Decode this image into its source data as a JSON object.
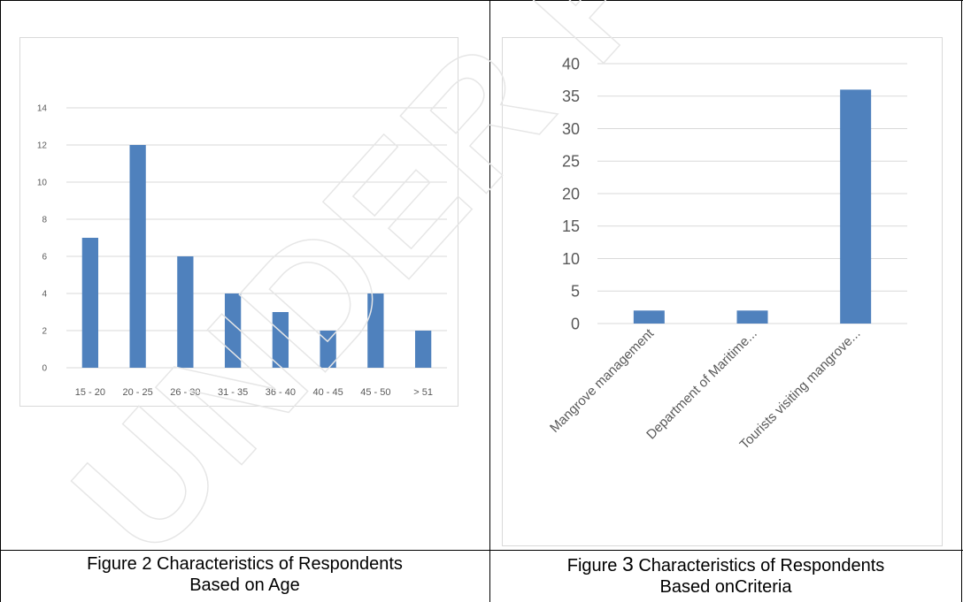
{
  "chart_data": [
    {
      "type": "bar",
      "title": "",
      "xlabel": "",
      "ylabel": "",
      "categories": [
        "15 - 20",
        "20 - 25",
        "26 - 30",
        "31 - 35",
        "36 - 40",
        "40 - 45",
        "45 - 50",
        "> 51"
      ],
      "values": [
        7,
        12,
        6,
        4,
        3,
        2,
        4,
        2
      ],
      "ylim": [
        0,
        14
      ],
      "yticks": [
        0,
        2,
        4,
        6,
        8,
        10,
        12,
        14
      ],
      "grid": true,
      "bar_color": "#4f81bd"
    },
    {
      "type": "bar",
      "title": "",
      "xlabel": "",
      "ylabel": "",
      "categories": [
        "Mangrove management",
        "Department of Maritime...",
        "Tourists visiting mangrove..."
      ],
      "values": [
        2,
        2,
        36
      ],
      "ylim": [
        0,
        40
      ],
      "yticks": [
        0,
        5,
        10,
        15,
        20,
        25,
        30,
        35,
        40
      ],
      "grid": true,
      "bar_color": "#4f81bd"
    }
  ],
  "captions": {
    "fig2_line1": "Figure 2 Characteristics of Respondents",
    "fig2_line2": "Based on Age",
    "fig3_label": "Figure ",
    "fig3_number": "3",
    "fig3_line1_rest": " Characteristics of Respondents",
    "fig3_line2": "Based onCriteria"
  },
  "watermark": "UNDER PEER REVIEW"
}
